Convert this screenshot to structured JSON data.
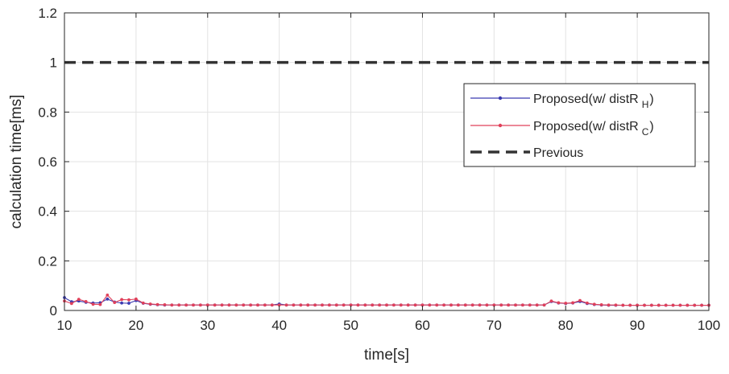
{
  "chart_data": {
    "type": "line",
    "xlabel": "time[s]",
    "ylabel": "calculation time[ms]",
    "xlim": [
      10,
      100
    ],
    "ylim": [
      0,
      1.2
    ],
    "xticks": [
      "10",
      "20",
      "30",
      "40",
      "50",
      "60",
      "70",
      "80",
      "90",
      "100"
    ],
    "yticks": [
      "0",
      "0.2",
      "0.4",
      "0.6",
      "0.8",
      "1",
      "1.2"
    ],
    "grid": true,
    "legend_position": "upper-right",
    "series": [
      {
        "name": "Proposed(w/ distR",
        "name_subscript": "H",
        "name_suffix": ")",
        "color": "#3a3ab0",
        "style": "solid-markers",
        "x": [
          10,
          11,
          12,
          13,
          14,
          15,
          16,
          17,
          18,
          19,
          20,
          21,
          22,
          23,
          24,
          25,
          26,
          27,
          28,
          29,
          30,
          31,
          32,
          33,
          34,
          35,
          36,
          37,
          38,
          39,
          40,
          41,
          42,
          43,
          44,
          45,
          46,
          47,
          48,
          49,
          50,
          51,
          52,
          53,
          54,
          55,
          56,
          57,
          58,
          59,
          60,
          61,
          62,
          63,
          64,
          65,
          66,
          67,
          68,
          69,
          70,
          71,
          72,
          73,
          74,
          75,
          76,
          77,
          78,
          79,
          80,
          81,
          82,
          83,
          84,
          85,
          86,
          87,
          88,
          89,
          90,
          91,
          92,
          93,
          94,
          95,
          96,
          97,
          98,
          99,
          100
        ],
        "y": [
          0.052,
          0.035,
          0.038,
          0.033,
          0.03,
          0.031,
          0.046,
          0.034,
          0.03,
          0.029,
          0.04,
          0.029,
          0.025,
          0.023,
          0.022,
          0.022,
          0.022,
          0.022,
          0.022,
          0.022,
          0.022,
          0.022,
          0.022,
          0.022,
          0.022,
          0.022,
          0.022,
          0.022,
          0.022,
          0.022,
          0.026,
          0.022,
          0.022,
          0.022,
          0.022,
          0.022,
          0.022,
          0.022,
          0.022,
          0.022,
          0.022,
          0.022,
          0.022,
          0.022,
          0.022,
          0.022,
          0.022,
          0.022,
          0.022,
          0.022,
          0.022,
          0.022,
          0.022,
          0.022,
          0.022,
          0.022,
          0.022,
          0.022,
          0.022,
          0.022,
          0.022,
          0.022,
          0.022,
          0.022,
          0.022,
          0.022,
          0.022,
          0.022,
          0.036,
          0.03,
          0.028,
          0.03,
          0.036,
          0.028,
          0.024,
          0.022,
          0.021,
          0.021,
          0.021,
          0.021,
          0.021,
          0.021,
          0.021,
          0.021,
          0.021,
          0.021,
          0.021,
          0.021,
          0.021,
          0.021,
          0.021
        ]
      },
      {
        "name": "Proposed(w/ distR",
        "name_subscript": "C",
        "name_suffix": ")",
        "color": "#e0405a",
        "style": "solid-markers",
        "x": [
          10,
          11,
          12,
          13,
          14,
          15,
          16,
          17,
          18,
          19,
          20,
          21,
          22,
          23,
          24,
          25,
          26,
          27,
          28,
          29,
          30,
          31,
          32,
          33,
          34,
          35,
          36,
          37,
          38,
          39,
          40,
          41,
          42,
          43,
          44,
          45,
          46,
          47,
          48,
          49,
          50,
          51,
          52,
          53,
          54,
          55,
          56,
          57,
          58,
          59,
          60,
          61,
          62,
          63,
          64,
          65,
          66,
          67,
          68,
          69,
          70,
          71,
          72,
          73,
          74,
          75,
          76,
          77,
          78,
          79,
          80,
          81,
          82,
          83,
          84,
          85,
          86,
          87,
          88,
          89,
          90,
          91,
          92,
          93,
          94,
          95,
          96,
          97,
          98,
          99,
          100
        ],
        "y": [
          0.038,
          0.028,
          0.045,
          0.036,
          0.025,
          0.024,
          0.062,
          0.032,
          0.044,
          0.043,
          0.046,
          0.03,
          0.026,
          0.024,
          0.023,
          0.022,
          0.022,
          0.022,
          0.022,
          0.022,
          0.022,
          0.022,
          0.022,
          0.022,
          0.022,
          0.022,
          0.022,
          0.022,
          0.022,
          0.022,
          0.022,
          0.022,
          0.022,
          0.022,
          0.022,
          0.022,
          0.022,
          0.022,
          0.022,
          0.022,
          0.022,
          0.022,
          0.022,
          0.022,
          0.022,
          0.022,
          0.022,
          0.022,
          0.022,
          0.022,
          0.022,
          0.022,
          0.022,
          0.022,
          0.022,
          0.022,
          0.022,
          0.022,
          0.022,
          0.022,
          0.022,
          0.022,
          0.022,
          0.022,
          0.022,
          0.022,
          0.022,
          0.022,
          0.038,
          0.031,
          0.029,
          0.031,
          0.04,
          0.03,
          0.025,
          0.023,
          0.022,
          0.022,
          0.021,
          0.021,
          0.021,
          0.021,
          0.021,
          0.021,
          0.021,
          0.021,
          0.021,
          0.021,
          0.021,
          0.021,
          0.021
        ]
      },
      {
        "name": "Previous",
        "color": "#333333",
        "style": "dashed",
        "x": [
          10,
          100
        ],
        "y": [
          1,
          1
        ]
      }
    ]
  }
}
